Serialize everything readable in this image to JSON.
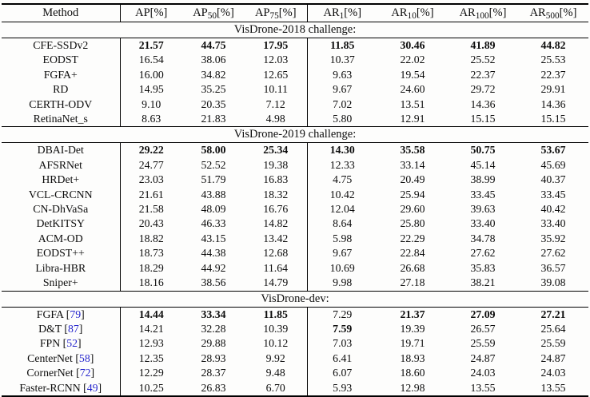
{
  "colors": {
    "citation_blue": "#2525cd",
    "rule_black": "#000000",
    "background": "#fdfdfc",
    "text": "#0d0d0d"
  },
  "citation_brackets": {
    "open": " [",
    "close": "]"
  },
  "table": {
    "columns": [
      {
        "label": "Method",
        "sub": "",
        "unit": ""
      },
      {
        "label": "AP",
        "sub": "",
        "unit": "[%]"
      },
      {
        "label": "AP",
        "sub": "50",
        "unit": "[%]"
      },
      {
        "label": "AP",
        "sub": "75",
        "unit": "[%]"
      },
      {
        "label": "AR",
        "sub": "1",
        "unit": "[%]"
      },
      {
        "label": "AR",
        "sub": "10",
        "unit": "[%]"
      },
      {
        "label": "AR",
        "sub": "100",
        "unit": "[%]"
      },
      {
        "label": "AR",
        "sub": "500",
        "unit": "[%]"
      }
    ],
    "sections": [
      {
        "title": "VisDrone-2018 challenge:",
        "rows": [
          {
            "method": "CFE-SSDv2",
            "cite": null,
            "values": [
              "21.57",
              "44.75",
              "17.95",
              "11.85",
              "30.46",
              "41.89",
              "44.82"
            ],
            "bold": [
              0,
              1,
              2,
              3,
              4,
              5,
              6
            ]
          },
          {
            "method": "EODST",
            "cite": null,
            "values": [
              "16.54",
              "38.06",
              "12.03",
              "10.37",
              "22.02",
              "25.52",
              "25.53"
            ],
            "bold": []
          },
          {
            "method": "FGFA+",
            "cite": null,
            "values": [
              "16.00",
              "34.82",
              "12.65",
              "9.63",
              "19.54",
              "22.37",
              "22.37"
            ],
            "bold": []
          },
          {
            "method": "RD",
            "cite": null,
            "values": [
              "14.95",
              "35.25",
              "10.11",
              "9.67",
              "24.60",
              "29.72",
              "29.91"
            ],
            "bold": []
          },
          {
            "method": "CERTH-ODV",
            "cite": null,
            "values": [
              "9.10",
              "20.35",
              "7.12",
              "7.02",
              "13.51",
              "14.36",
              "14.36"
            ],
            "bold": []
          },
          {
            "method": "RetinaNet_s",
            "cite": null,
            "values": [
              "8.63",
              "21.83",
              "4.98",
              "5.80",
              "12.91",
              "15.15",
              "15.15"
            ],
            "bold": []
          }
        ]
      },
      {
        "title": "VisDrone-2019 challenge:",
        "rows": [
          {
            "method": "DBAI-Det",
            "cite": null,
            "values": [
              "29.22",
              "58.00",
              "25.34",
              "14.30",
              "35.58",
              "50.75",
              "53.67"
            ],
            "bold": [
              0,
              1,
              2,
              3,
              4,
              5,
              6
            ]
          },
          {
            "method": "AFSRNet",
            "cite": null,
            "values": [
              "24.77",
              "52.52",
              "19.38",
              "12.33",
              "33.14",
              "45.14",
              "45.69"
            ],
            "bold": []
          },
          {
            "method": "HRDet+",
            "cite": null,
            "values": [
              "23.03",
              "51.79",
              "16.83",
              "4.75",
              "20.49",
              "38.99",
              "40.37"
            ],
            "bold": []
          },
          {
            "method": "VCL-CRCNN",
            "cite": null,
            "values": [
              "21.61",
              "43.88",
              "18.32",
              "10.42",
              "25.94",
              "33.45",
              "33.45"
            ],
            "bold": []
          },
          {
            "method": "CN-DhVaSa",
            "cite": null,
            "values": [
              "21.58",
              "48.09",
              "16.76",
              "12.04",
              "29.60",
              "39.63",
              "40.42"
            ],
            "bold": []
          },
          {
            "method": "DetKITSY",
            "cite": null,
            "values": [
              "20.43",
              "46.33",
              "14.82",
              "8.64",
              "25.80",
              "33.40",
              "33.40"
            ],
            "bold": []
          },
          {
            "method": "ACM-OD",
            "cite": null,
            "values": [
              "18.82",
              "43.15",
              "13.42",
              "5.98",
              "22.29",
              "34.78",
              "35.92"
            ],
            "bold": []
          },
          {
            "method": "EODST++",
            "cite": null,
            "values": [
              "18.73",
              "44.38",
              "12.68",
              "9.67",
              "22.84",
              "27.62",
              "27.62"
            ],
            "bold": []
          },
          {
            "method": "Libra-HBR",
            "cite": null,
            "values": [
              "18.29",
              "44.92",
              "11.64",
              "10.69",
              "26.68",
              "35.83",
              "36.57"
            ],
            "bold": []
          },
          {
            "method": "Sniper+",
            "cite": null,
            "values": [
              "18.16",
              "38.56",
              "14.79",
              "9.98",
              "27.18",
              "38.21",
              "39.08"
            ],
            "bold": []
          }
        ]
      },
      {
        "title": "VisDrone-dev:",
        "rows": [
          {
            "method": "FGFA",
            "cite": "79",
            "values": [
              "14.44",
              "33.34",
              "11.85",
              "7.29",
              "21.37",
              "27.09",
              "27.21"
            ],
            "bold": [
              0,
              1,
              2,
              4,
              5,
              6
            ]
          },
          {
            "method": "D&T",
            "cite": "87",
            "values": [
              "14.21",
              "32.28",
              "10.39",
              "7.59",
              "19.39",
              "26.57",
              "25.64"
            ],
            "bold": [
              3
            ]
          },
          {
            "method": "FPN",
            "cite": "52",
            "values": [
              "12.93",
              "29.88",
              "10.12",
              "7.03",
              "19.71",
              "25.59",
              "25.59"
            ],
            "bold": []
          },
          {
            "method": "CenterNet",
            "cite": "58",
            "values": [
              "12.35",
              "28.93",
              "9.92",
              "6.41",
              "18.93",
              "24.87",
              "24.87"
            ],
            "bold": []
          },
          {
            "method": "CornerNet",
            "cite": "72",
            "values": [
              "12.29",
              "28.37",
              "9.48",
              "6.07",
              "18.60",
              "24.03",
              "24.03"
            ],
            "bold": []
          },
          {
            "method": "Faster-RCNN",
            "cite": "49",
            "values": [
              "10.25",
              "26.83",
              "6.70",
              "5.93",
              "12.98",
              "13.55",
              "13.55"
            ],
            "bold": []
          }
        ]
      }
    ]
  }
}
